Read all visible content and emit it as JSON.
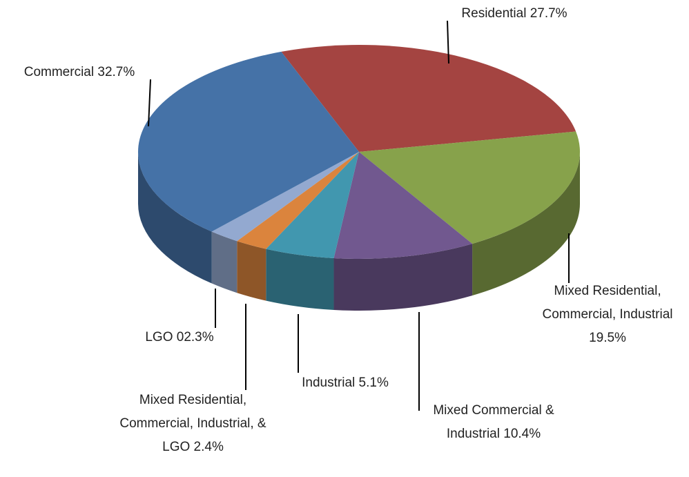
{
  "chart_data": {
    "type": "pie",
    "categories": [
      "Residential",
      "Mixed Residential, Commercial, Industrial",
      "Mixed Commercial & Industrial",
      "Industrial",
      "Mixed Residential, Commercial, Industrial, & LGO",
      "LGO",
      "Commercial"
    ],
    "values": [
      27.7,
      19.5,
      10.4,
      5.1,
      2.4,
      2.3,
      32.7
    ],
    "value_labels": [
      "27.7%",
      "19.5%",
      "10.4%",
      "5.1%",
      "2.4%",
      "02.3%",
      "32.7%"
    ],
    "colors": [
      "#a44441",
      "#87a24b",
      "#71588f",
      "#4197af",
      "#db843d",
      "#93a9d0",
      "#4572a7"
    ],
    "three_d": true
  }
}
